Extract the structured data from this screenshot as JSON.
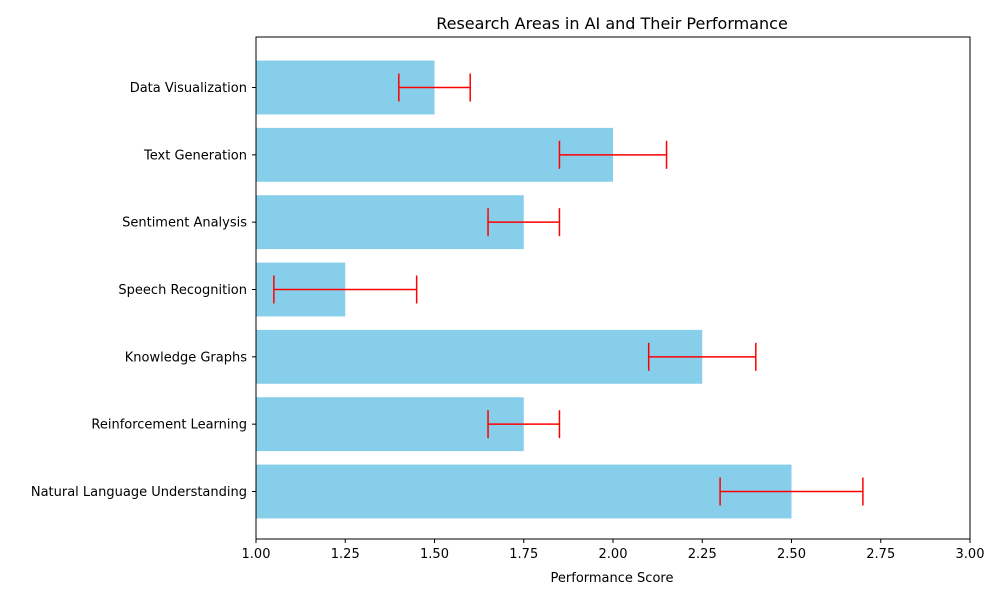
{
  "chart_data": {
    "type": "bar",
    "orientation": "horizontal",
    "title": "Research Areas in AI and Their Performance",
    "xlabel": "Performance Score",
    "ylabel": "",
    "xlim": [
      1.0,
      3.0
    ],
    "xticks": [
      "1.00",
      "1.25",
      "1.50",
      "1.75",
      "2.00",
      "2.25",
      "2.50",
      "2.75",
      "3.00"
    ],
    "categories": [
      "Natural Language Understanding",
      "Reinforcement Learning",
      "Knowledge Graphs",
      "Speech Recognition",
      "Sentiment Analysis",
      "Text Generation",
      "Data Visualization"
    ],
    "values": [
      2.5,
      1.75,
      2.25,
      1.25,
      1.75,
      2.0,
      1.5
    ],
    "error_ranges": [
      [
        2.3,
        2.7
      ],
      [
        1.65,
        1.85
      ],
      [
        2.1,
        2.4
      ],
      [
        1.05,
        1.45
      ],
      [
        1.65,
        1.85
      ],
      [
        1.85,
        2.15
      ],
      [
        1.4,
        1.6
      ]
    ],
    "bar_color": "#87CEEB",
    "error_color": "#FF0000",
    "grid": false,
    "legend": "none"
  }
}
